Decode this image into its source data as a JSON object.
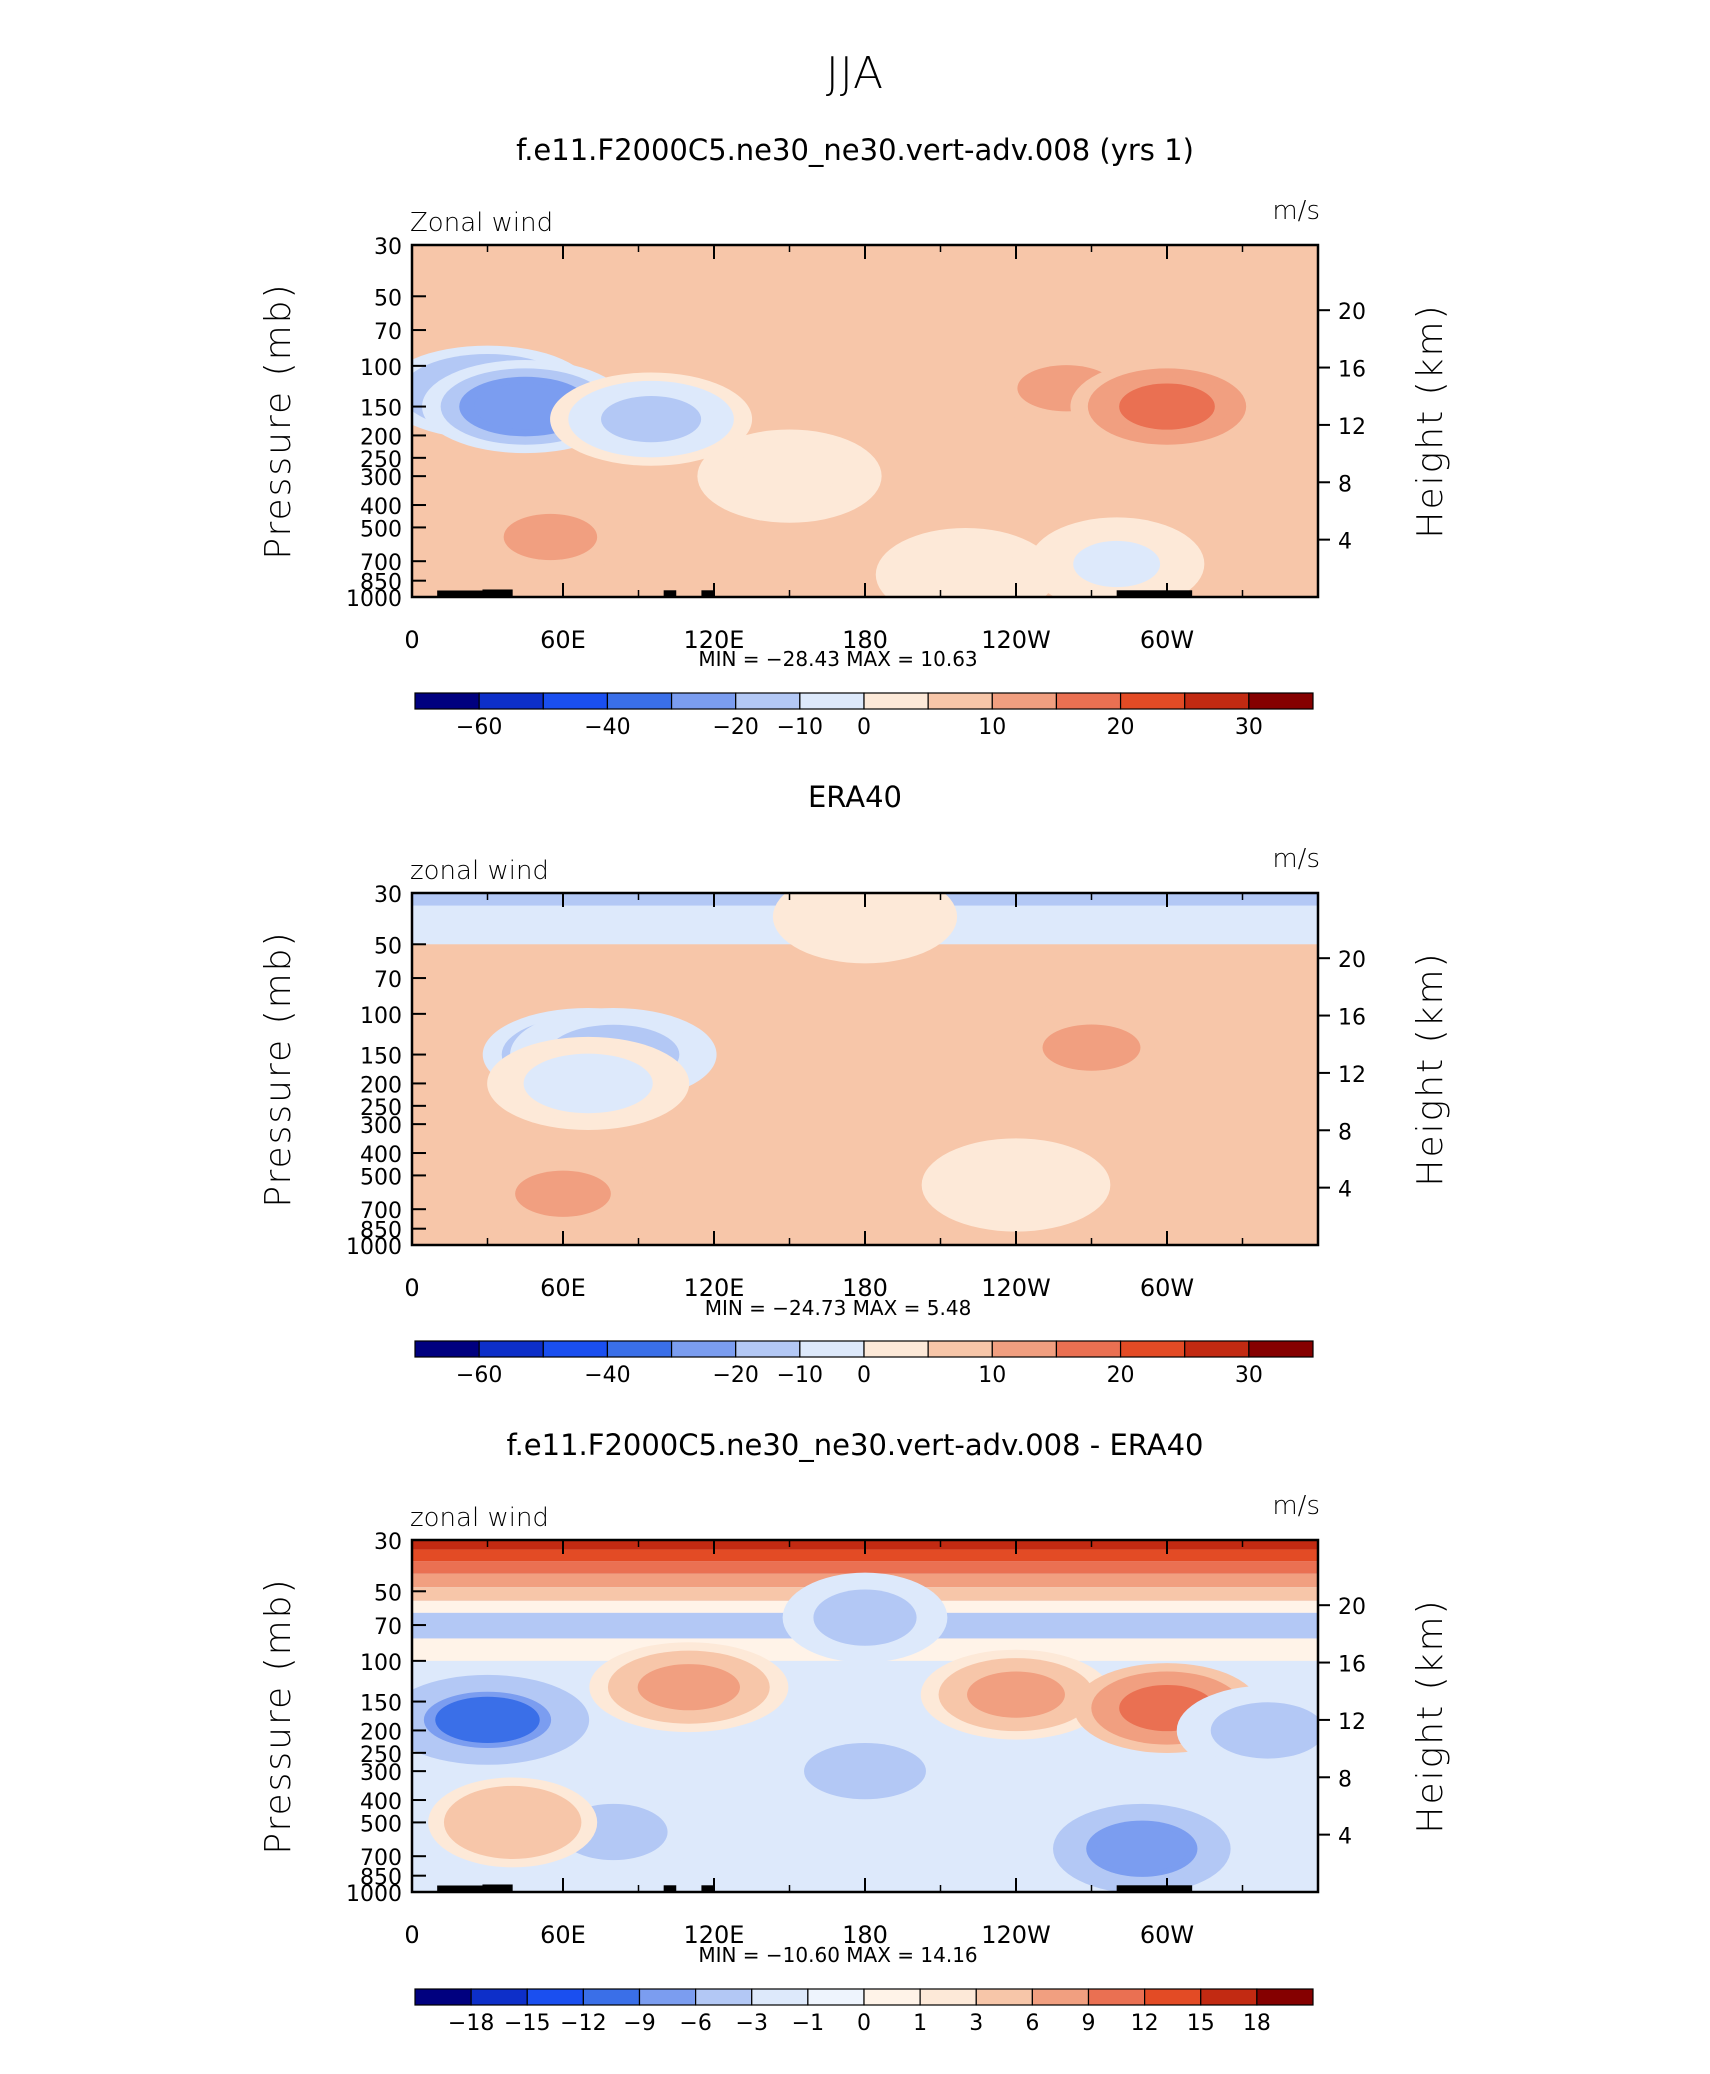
{
  "figure": {
    "title": "JJA"
  },
  "chart_data": [
    {
      "type": "heatmap",
      "title": "f.e11.F2000C5.ne30_ne30.vert-adv.008 (yrs 1)",
      "variable_label": "Zonal wind",
      "units": "m/s",
      "xlabel": "",
      "ylabel": "Pressure (mb)",
      "y2label": "Height (km)",
      "xticks": [
        "0",
        "60E",
        "120E",
        "180",
        "120W",
        "60W"
      ],
      "yticks": [
        "30",
        "50",
        "70",
        "100",
        "150",
        "200",
        "250",
        "300",
        "400",
        "500",
        "700",
        "850",
        "1000"
      ],
      "y2ticks": [
        "20",
        "16",
        "12",
        "8",
        "4"
      ],
      "stats_text": "MIN = −28.43   MAX =   10.63",
      "min": -28.43,
      "max": 10.63,
      "colorbar_labels": [
        "−60",
        "−40",
        "−20",
        "−10",
        "0",
        "10",
        "20",
        "30"
      ],
      "features": [
        {
          "lon": 30,
          "p": 130,
          "value": -20
        },
        {
          "lon": 45,
          "p": 150,
          "value": -28
        },
        {
          "lon": 95,
          "p": 170,
          "value": -12
        },
        {
          "lon": 260,
          "p": 125,
          "value": 6
        },
        {
          "lon": 300,
          "p": 150,
          "value": 10
        },
        {
          "lon": 55,
          "p": 550,
          "value": 6
        },
        {
          "lon": 150,
          "p": 300,
          "value": -4
        },
        {
          "lon": 220,
          "p": 800,
          "value": -4
        },
        {
          "lon": 280,
          "p": 720,
          "value": -6
        }
      ]
    },
    {
      "type": "heatmap",
      "title": "ERA40",
      "variable_label": "zonal wind",
      "units": "m/s",
      "xlabel": "",
      "ylabel": "Pressure (mb)",
      "y2label": "Height (km)",
      "xticks": [
        "0",
        "60E",
        "120E",
        "180",
        "120W",
        "60W"
      ],
      "yticks": [
        "30",
        "50",
        "70",
        "100",
        "150",
        "200",
        "250",
        "300",
        "400",
        "500",
        "700",
        "850",
        "1000"
      ],
      "y2ticks": [
        "20",
        "16",
        "12",
        "8",
        "4"
      ],
      "stats_text": "MIN = −24.73   MAX =    5.48",
      "min": -24.73,
      "max": 5.48,
      "colorbar_labels": [
        "−60",
        "−40",
        "−20",
        "−10",
        "0",
        "10",
        "20",
        "30"
      ],
      "features": [
        {
          "lon": 70,
          "p": 150,
          "value": -24
        },
        {
          "lon": 80,
          "p": 150,
          "value": -18
        },
        {
          "lon": 70,
          "p": 200,
          "value": -8
        },
        {
          "lon": 270,
          "p": 140,
          "value": 5
        },
        {
          "lon": 60,
          "p": 600,
          "value": 5
        },
        {
          "lon": 240,
          "p": 550,
          "value": -4
        },
        {
          "lon": 180,
          "p": 38,
          "value": -4
        }
      ]
    },
    {
      "type": "heatmap",
      "title": "f.e11.F2000C5.ne30_ne30.vert-adv.008 - ERA40",
      "variable_label": "zonal wind",
      "units": "m/s",
      "xlabel": "",
      "ylabel": "Pressure (mb)",
      "y2label": "Height (km)",
      "xticks": [
        "0",
        "60E",
        "120E",
        "180",
        "120W",
        "60W"
      ],
      "yticks": [
        "30",
        "50",
        "70",
        "100",
        "150",
        "200",
        "250",
        "300",
        "400",
        "500",
        "700",
        "850",
        "1000"
      ],
      "y2ticks": [
        "20",
        "16",
        "12",
        "8",
        "4"
      ],
      "stats_text": "MIN = −10.60   MAX =   14.16",
      "min": -10.6,
      "max": 14.16,
      "colorbar_labels": [
        "−18",
        "−15",
        "−12",
        "−9",
        "−6",
        "−3",
        "−1",
        "0",
        "1",
        "3",
        "6",
        "9",
        "12",
        "15",
        "18"
      ],
      "features": [
        {
          "lon": 30,
          "p": 180,
          "value": -10
        },
        {
          "lon": 110,
          "p": 130,
          "value": 7
        },
        {
          "lon": 180,
          "p": 300,
          "value": -4
        },
        {
          "lon": 240,
          "p": 140,
          "value": 6
        },
        {
          "lon": 300,
          "p": 160,
          "value": 10
        },
        {
          "lon": 340,
          "p": 200,
          "value": -5
        },
        {
          "lon": 290,
          "p": 650,
          "value": -9
        },
        {
          "lon": 80,
          "p": 550,
          "value": -5
        },
        {
          "lon": 40,
          "p": 500,
          "value": 5
        },
        {
          "lon": 180,
          "p": 65,
          "value": -4
        }
      ]
    }
  ]
}
